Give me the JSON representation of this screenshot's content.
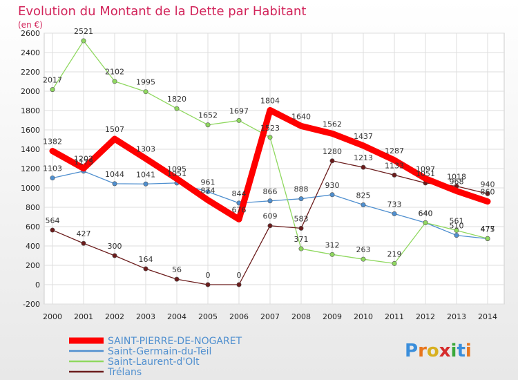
{
  "chart_data": {
    "type": "line",
    "title": "Evolution du Montant de la Dette par Habitant",
    "unit_label": "(en €)",
    "x": [
      "2000",
      "2001",
      "2002",
      "2003",
      "2004",
      "2005",
      "2006",
      "2007",
      "2008",
      "2009",
      "2010",
      "2011",
      "2012",
      "2013",
      "2014"
    ],
    "ylim": [
      -200,
      2600
    ],
    "yticks": [
      -200,
      0,
      200,
      400,
      600,
      800,
      1000,
      1200,
      1400,
      1600,
      1800,
      2000,
      2200,
      2400,
      2600
    ],
    "grid": true,
    "legend_position": "bottom-left",
    "series": [
      {
        "name": "SAINT-PIERRE-DE-NOGARET",
        "color": "#ff0000",
        "emphasis": true,
        "values": [
          1382,
          1202,
          1507,
          1303,
          1095,
          874,
          676,
          1804,
          1640,
          1562,
          1437,
          1287,
          1097,
          968,
          860
        ]
      },
      {
        "name": "Saint-Germain-du-Teil",
        "color": "#4f8fcf",
        "emphasis": false,
        "values": [
          1103,
          1173,
          1044,
          1041,
          1051,
          961,
          844,
          866,
          888,
          930,
          825,
          733,
          640,
          510,
          475
        ]
      },
      {
        "name": "Saint-Laurent-d'Olt",
        "color": "#8fd85f",
        "emphasis": false,
        "values": [
          2017,
          2521,
          2102,
          1995,
          1820,
          1652,
          1697,
          1523,
          371,
          312,
          263,
          219,
          640,
          561,
          477
        ]
      },
      {
        "name": "Trélans",
        "color": "#6b1c1c",
        "emphasis": false,
        "values": [
          564,
          427,
          300,
          164,
          56,
          0,
          0,
          609,
          583,
          1280,
          1213,
          1133,
          1051,
          1018,
          940
        ]
      }
    ]
  },
  "logo": {
    "text": "Proxiti"
  }
}
